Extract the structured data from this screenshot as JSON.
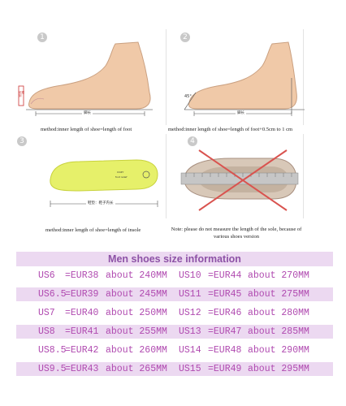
{
  "panels": [
    {
      "number": "1",
      "dim_label": "脚长",
      "side_label": "足跟到",
      "caption": "method:inner length of shoe=length of foot"
    },
    {
      "number": "2",
      "dim_label": "脚长",
      "angle_label": "45°",
      "caption": "method:inner length of shoe=length of foot+0.5cm to 1 cm"
    },
    {
      "number": "3",
      "dim_label": "鞋垫：鞋子内长",
      "insole_text": "",
      "caption": "method:inner length of shoe=length of insole"
    },
    {
      "number": "4",
      "caption": "Note: please do not measure the length of the sole, because of various shoes version"
    }
  ],
  "size_table": {
    "title": "Men shoes size information",
    "rows": [
      {
        "us1": "US6",
        "eu1": "=EUR38",
        "about1": "about 240MM",
        "us2": "US10",
        "eu2": "=EUR44",
        "about2": "about 270MM"
      },
      {
        "us1": "US6.5",
        "eu1": "=EUR39",
        "about1": "about 245MM",
        "us2": "US11",
        "eu2": "=EUR45",
        "about2": "about 275MM"
      },
      {
        "us1": "US7",
        "eu1": "=EUR40",
        "about1": "about 250MM",
        "us2": "US12",
        "eu2": "=EUR46",
        "about2": "about 280MM"
      },
      {
        "us1": "US8",
        "eu1": "=EUR41",
        "about1": "about 255MM",
        "us2": "US13",
        "eu2": "=EUR47",
        "about2": "about 285MM"
      },
      {
        "us1": "US8.5",
        "eu1": "=EUR42",
        "about1": "about 260MM",
        "us2": "US14",
        "eu2": "=EUR48",
        "about2": "about 290MM"
      },
      {
        "us1": "US9.5",
        "eu1": "=EUR43",
        "about1": "about 265MM",
        "us2": "US15",
        "eu2": "=EUR49",
        "about2": "about 295MM"
      }
    ]
  },
  "colors": {
    "accent": "#8d52a6",
    "row_shade": "#ecd9f1",
    "row_text": "#b04ab0",
    "cross": "#d9534f",
    "insole": "#e6f06a"
  }
}
